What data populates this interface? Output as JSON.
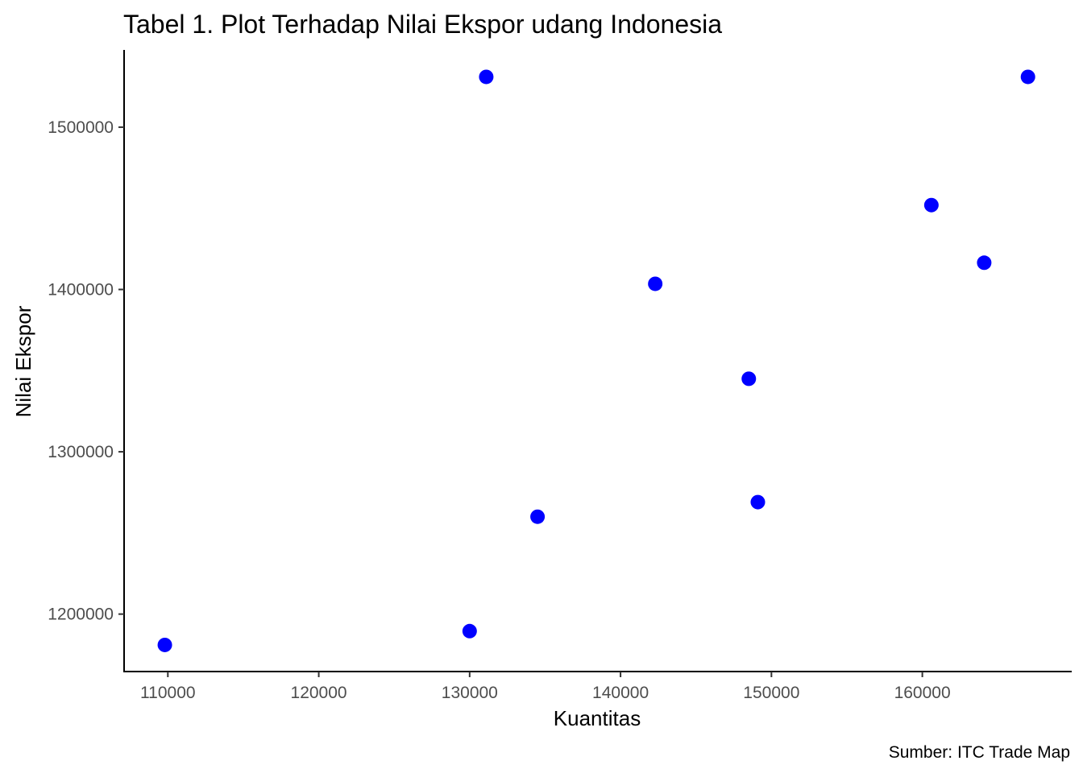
{
  "chart_data": {
    "type": "scatter",
    "title": "Tabel 1. Plot Terhadap Nilai Ekspor udang Indonesia",
    "xlabel": "Kuantitas",
    "ylabel": "Nilai Ekspor",
    "caption": "Sumber: ITC Trade Map",
    "xlim": [
      107100,
      169900
    ],
    "ylim": [
      1164600,
      1547600
    ],
    "xticks": [
      110000,
      120000,
      130000,
      140000,
      150000,
      160000
    ],
    "xtick_labels": [
      "110000",
      "120000",
      "130000",
      "140000",
      "150000",
      "160000"
    ],
    "yticks": [
      1200000,
      1300000,
      1400000,
      1500000
    ],
    "ytick_labels": [
      "1200000",
      "1300000",
      "1400000",
      "1500000"
    ],
    "grid": false,
    "legend": "none",
    "point_color": "#0000ff",
    "points": [
      {
        "x": 109800,
        "y": 1181000
      },
      {
        "x": 130000,
        "y": 1189500
      },
      {
        "x": 131100,
        "y": 1531000
      },
      {
        "x": 134500,
        "y": 1260000
      },
      {
        "x": 142300,
        "y": 1403500
      },
      {
        "x": 148500,
        "y": 1345000
      },
      {
        "x": 149100,
        "y": 1269000
      },
      {
        "x": 160600,
        "y": 1452000
      },
      {
        "x": 164100,
        "y": 1416500
      },
      {
        "x": 167000,
        "y": 1531000
      }
    ]
  }
}
